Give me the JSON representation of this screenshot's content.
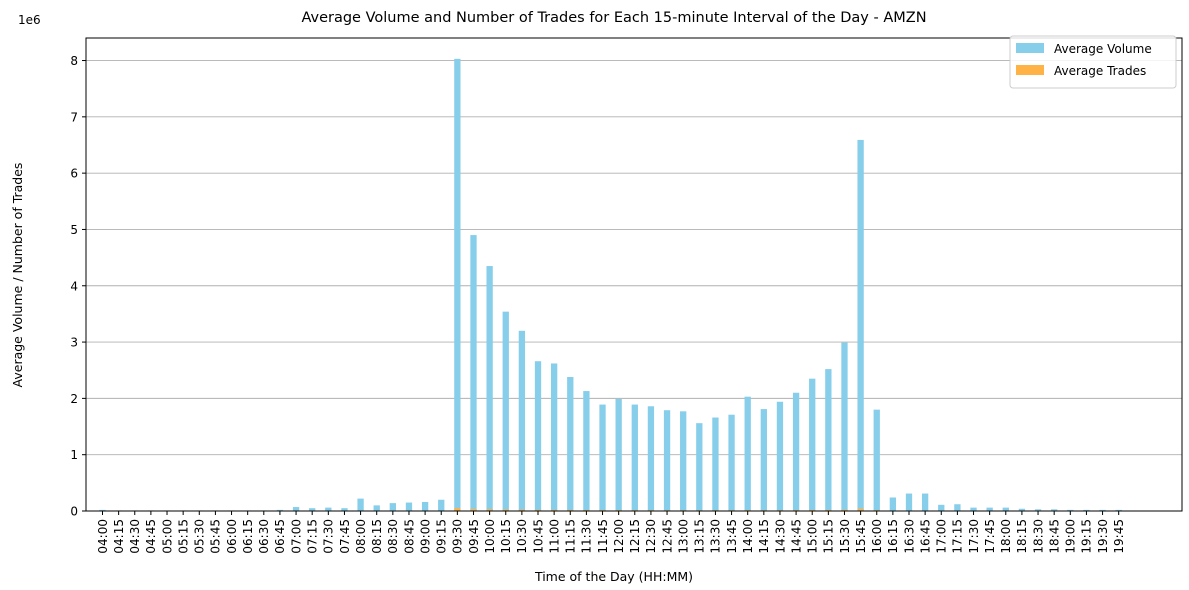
{
  "chart_data": {
    "type": "bar",
    "title": "Average Volume and Number of Trades for Each 15-minute Interval of the Day - AMZN",
    "xlabel": "Time of the Day (HH:MM)",
    "ylabel": "Average Volume / Number of Trades",
    "y_offset_label": "1e6",
    "ylim": [
      0,
      8.4
    ],
    "yticks": [
      "0",
      "1",
      "2",
      "3",
      "4",
      "5",
      "6",
      "7",
      "8"
    ],
    "grid": "horizontal",
    "legend_position": "top-right",
    "colors": {
      "volume": "#87CEEB",
      "trades": "#FFB347"
    },
    "categories": [
      "04:00",
      "04:15",
      "04:30",
      "04:45",
      "05:00",
      "05:15",
      "05:30",
      "05:45",
      "06:00",
      "06:15",
      "06:30",
      "06:45",
      "07:00",
      "07:15",
      "07:30",
      "07:45",
      "08:00",
      "08:15",
      "08:30",
      "08:45",
      "09:00",
      "09:15",
      "09:30",
      "09:45",
      "10:00",
      "10:15",
      "10:30",
      "10:45",
      "11:00",
      "11:15",
      "11:30",
      "11:45",
      "12:00",
      "12:15",
      "12:30",
      "12:45",
      "13:00",
      "13:15",
      "13:30",
      "13:45",
      "14:00",
      "14:15",
      "14:30",
      "14:45",
      "15:00",
      "15:15",
      "15:30",
      "15:45",
      "16:00",
      "16:15",
      "16:30",
      "16:45",
      "17:00",
      "17:15",
      "17:30",
      "17:45",
      "18:00",
      "18:15",
      "18:30",
      "18:45",
      "19:00",
      "19:15",
      "19:30",
      "19:45"
    ],
    "series": [
      {
        "name": "Average Volume",
        "values": [
          0.02,
          0.01,
          0.01,
          0.01,
          0.01,
          0.01,
          0.01,
          0.01,
          0.01,
          0.01,
          0.01,
          0.02,
          0.07,
          0.05,
          0.06,
          0.05,
          0.22,
          0.1,
          0.14,
          0.15,
          0.16,
          0.2,
          8.03,
          4.9,
          4.35,
          3.54,
          3.2,
          2.66,
          2.62,
          2.38,
          2.13,
          1.89,
          1.99,
          1.89,
          1.86,
          1.79,
          1.77,
          1.56,
          1.66,
          1.71,
          2.03,
          1.81,
          1.94,
          2.1,
          2.35,
          2.52,
          2.99,
          6.59,
          1.8,
          0.24,
          0.31,
          0.31,
          0.11,
          0.12,
          0.06,
          0.06,
          0.06,
          0.04,
          0.03,
          0.03,
          0.02,
          0.02,
          0.02,
          0.02
        ]
      },
      {
        "name": "Average Trades",
        "values": [
          0.0003,
          0.0001,
          0.0001,
          0.0001,
          0.0001,
          0.0001,
          0.0001,
          0.0001,
          0.0001,
          0.0001,
          0.0001,
          0.0003,
          0.0008,
          0.0006,
          0.0007,
          0.0006,
          0.0025,
          0.0012,
          0.0016,
          0.0017,
          0.0018,
          0.0023,
          0.05,
          0.035,
          0.031,
          0.026,
          0.024,
          0.021,
          0.02,
          0.019,
          0.017,
          0.016,
          0.016,
          0.015,
          0.015,
          0.014,
          0.014,
          0.013,
          0.013,
          0.014,
          0.016,
          0.014,
          0.015,
          0.016,
          0.018,
          0.019,
          0.022,
          0.04,
          0.015,
          0.003,
          0.004,
          0.004,
          0.0014,
          0.0015,
          0.0008,
          0.0008,
          0.0008,
          0.0005,
          0.0004,
          0.0004,
          0.0003,
          0.0003,
          0.0003,
          0.0003
        ]
      }
    ]
  }
}
